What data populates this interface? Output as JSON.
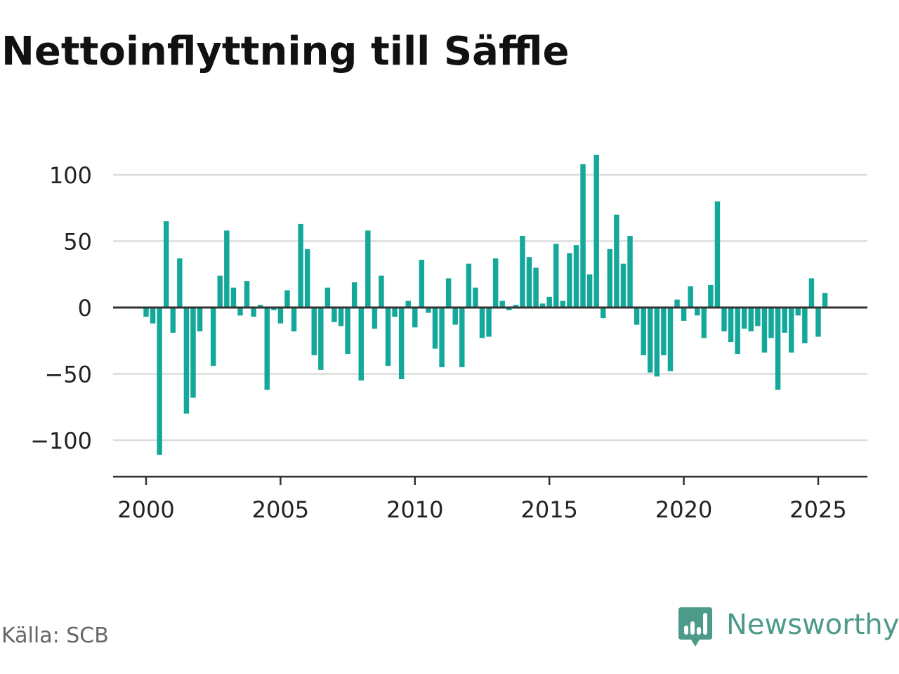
{
  "title": "Nettoinflyttning till Säffle",
  "source": "Källa: SCB",
  "brand": {
    "name": "Newsworthy",
    "icon": "newsworthy-chart-bubble-icon",
    "color": "#4c9a89"
  },
  "colors": {
    "bar": "#14a89a",
    "grid": "#dcdcdc",
    "zero_line": "#333333",
    "axis": "#333333"
  },
  "chart_data": {
    "type": "bar",
    "title": "Nettoinflyttning till Säffle",
    "xlabel": "",
    "ylabel": "",
    "ylim": [
      -128,
      118
    ],
    "xlim": [
      1999.6,
      2026.8
    ],
    "grid": true,
    "legend": "none",
    "y_ticks": [
      100,
      50,
      0,
      -50,
      -100
    ],
    "y_tick_labels": [
      "100",
      "50",
      "0",
      "−50",
      "−100"
    ],
    "x_ticks": [
      2000,
      2005,
      2010,
      2015,
      2020,
      2025
    ],
    "x_tick_labels": [
      "2000",
      "2005",
      "2010",
      "2015",
      "2020",
      "2025"
    ],
    "x": [
      2000.0,
      2000.25,
      2000.5,
      2000.75,
      2001.0,
      2001.25,
      2001.5,
      2001.75,
      2002.0,
      2002.25,
      2002.5,
      2002.75,
      2003.0,
      2003.25,
      2003.5,
      2003.75,
      2004.0,
      2004.25,
      2004.5,
      2004.75,
      2005.0,
      2005.25,
      2005.5,
      2005.75,
      2006.0,
      2006.25,
      2006.5,
      2006.75,
      2007.0,
      2007.25,
      2007.5,
      2007.75,
      2008.0,
      2008.25,
      2008.5,
      2008.75,
      2009.0,
      2009.25,
      2009.5,
      2009.75,
      2010.0,
      2010.25,
      2010.5,
      2010.75,
      2011.0,
      2011.25,
      2011.5,
      2011.75,
      2012.0,
      2012.25,
      2012.5,
      2012.75,
      2013.0,
      2013.25,
      2013.5,
      2013.75,
      2014.0,
      2014.25,
      2014.5,
      2014.75,
      2015.0,
      2015.25,
      2015.5,
      2015.75,
      2016.0,
      2016.25,
      2016.5,
      2016.75,
      2017.0,
      2017.25,
      2017.5,
      2017.75,
      2018.0,
      2018.25,
      2018.5,
      2018.75,
      2019.0,
      2019.25,
      2019.5,
      2019.75,
      2020.0,
      2020.25,
      2020.5,
      2020.75,
      2021.0,
      2021.25,
      2021.5,
      2021.75,
      2022.0,
      2022.25,
      2022.5,
      2022.75,
      2023.0,
      2023.25,
      2023.5,
      2023.75,
      2024.0,
      2024.25,
      2024.5,
      2024.75,
      2025.0,
      2025.25
    ],
    "values": [
      -7,
      -12,
      -111,
      65,
      -19,
      37,
      -80,
      -68,
      -18,
      0,
      -44,
      24,
      58,
      15,
      -6,
      20,
      -7,
      2,
      -62,
      -2,
      -12,
      13,
      -18,
      63,
      44,
      -36,
      -47,
      15,
      -11,
      -14,
      -35,
      19,
      -55,
      58,
      -16,
      24,
      -44,
      -7,
      -54,
      5,
      -15,
      36,
      -4,
      -31,
      -45,
      22,
      -13,
      -45,
      33,
      15,
      -23,
      -22,
      37,
      5,
      -2,
      2,
      54,
      38,
      30,
      3,
      8,
      48,
      5,
      41,
      47,
      108,
      25,
      115,
      -8,
      44,
      70,
      33,
      54,
      -13,
      -36,
      -49,
      -52,
      -36,
      -48,
      6,
      -10,
      16,
      -6,
      -23,
      17,
      80,
      -18,
      -26,
      -35,
      -16,
      -18,
      -14,
      -34,
      -23,
      -62,
      -19,
      -34,
      -6,
      -27,
      22,
      -22,
      11
    ]
  }
}
